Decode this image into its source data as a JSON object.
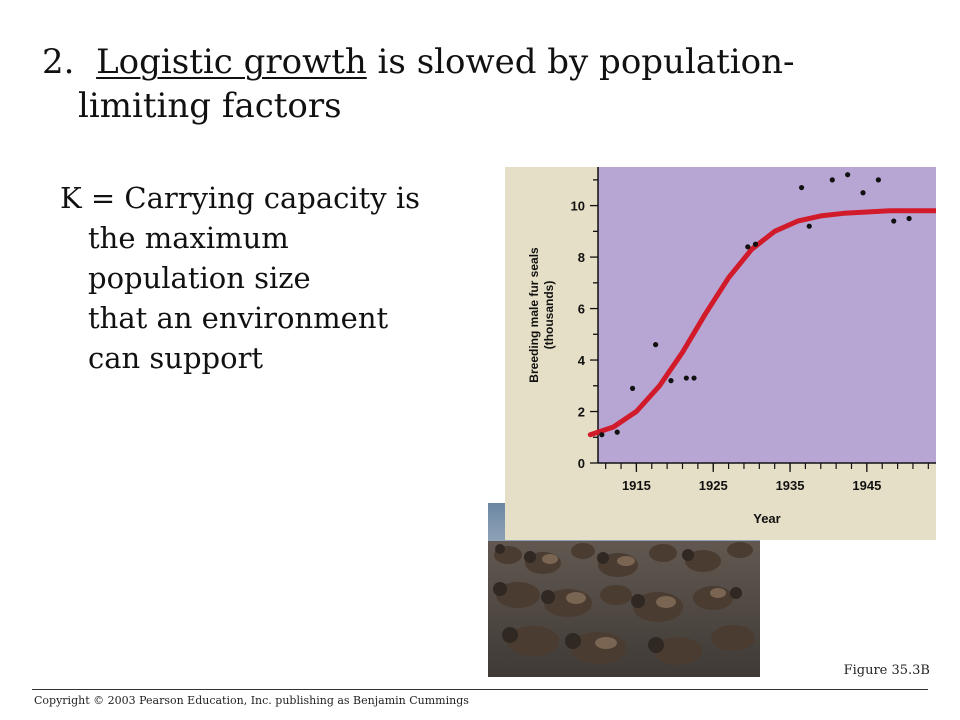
{
  "slide": {
    "title_number": "2.",
    "title_underlined": "Logistic growth",
    "title_rest_line1": " is slowed by population-",
    "title_line2": "limiting factors",
    "bullet_line1": "K = Carrying capacity is",
    "bullet_continuation": [
      "the maximum",
      "population size",
      "that an environment",
      "can support"
    ],
    "figure_label": "Figure 35.3B",
    "copyright": "Copyright © 2003 Pearson Education, Inc. publishing as Benjamin Cummings"
  },
  "colors": {
    "plot_bg": "#b7a6d3",
    "curve": "#d11a2a",
    "chart_bg": "#e6dfc7",
    "grid": "#ffffff",
    "points": "#111111"
  },
  "chart_data": {
    "type": "scatter",
    "xlabel": "Year",
    "ylabel": "Breeding male fur seals (thousands)",
    "xlim": [
      1910,
      1954
    ],
    "ylim": [
      0,
      11.5
    ],
    "x_ticks": [
      "1915",
      "1925",
      "1935",
      "1945"
    ],
    "y_ticks": [
      "0",
      "2",
      "4",
      "6",
      "8",
      "10"
    ],
    "points": [
      {
        "x": 1910.5,
        "y": 1.1
      },
      {
        "x": 1912.5,
        "y": 1.2
      },
      {
        "x": 1914.5,
        "y": 2.9
      },
      {
        "x": 1917.5,
        "y": 4.6
      },
      {
        "x": 1919.5,
        "y": 3.2
      },
      {
        "x": 1921.5,
        "y": 3.3
      },
      {
        "x": 1922.5,
        "y": 3.3
      },
      {
        "x": 1929.5,
        "y": 8.4
      },
      {
        "x": 1930.5,
        "y": 8.5
      },
      {
        "x": 1936.5,
        "y": 10.7
      },
      {
        "x": 1937.5,
        "y": 9.2
      },
      {
        "x": 1940.5,
        "y": 11.0
      },
      {
        "x": 1942.5,
        "y": 11.2
      },
      {
        "x": 1944.5,
        "y": 10.5
      },
      {
        "x": 1946.5,
        "y": 11.0
      },
      {
        "x": 1948.5,
        "y": 9.4
      },
      {
        "x": 1950.5,
        "y": 9.5
      }
    ],
    "curve": {
      "name": "",
      "x": [
        1909,
        1912,
        1915,
        1918,
        1921,
        1924,
        1927,
        1930,
        1933,
        1936,
        1939,
        1942,
        1945,
        1948,
        1951,
        1954
      ],
      "y": [
        1.1,
        1.4,
        2.0,
        3.0,
        4.3,
        5.8,
        7.2,
        8.3,
        9.0,
        9.4,
        9.6,
        9.7,
        9.75,
        9.8,
        9.8,
        9.8
      ]
    },
    "grid": false,
    "legend": "none"
  }
}
